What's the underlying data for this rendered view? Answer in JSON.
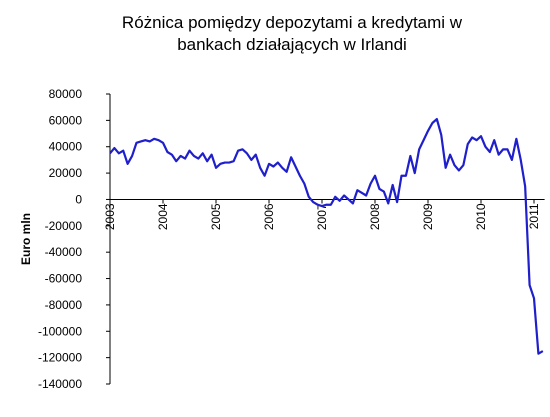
{
  "chart_data": {
    "type": "line",
    "title": [
      "Różnica pomiędzy depozytami a kredytami w",
      "bankach działających w Irlandi"
    ],
    "y_label": "Euro mln",
    "x": [
      2003,
      2003.083,
      2003.167,
      2003.25,
      2003.333,
      2003.417,
      2003.5,
      2003.583,
      2003.667,
      2003.75,
      2003.833,
      2003.917,
      2004,
      2004.083,
      2004.167,
      2004.25,
      2004.333,
      2004.417,
      2004.5,
      2004.583,
      2004.667,
      2004.75,
      2004.833,
      2004.917,
      2005,
      2005.083,
      2005.167,
      2005.25,
      2005.333,
      2005.417,
      2005.5,
      2005.583,
      2005.667,
      2005.75,
      2005.833,
      2005.917,
      2006,
      2006.083,
      2006.167,
      2006.25,
      2006.333,
      2006.417,
      2006.5,
      2006.583,
      2006.667,
      2006.75,
      2006.833,
      2006.917,
      2007,
      2007.083,
      2007.167,
      2007.25,
      2007.333,
      2007.417,
      2007.5,
      2007.583,
      2007.667,
      2007.75,
      2007.833,
      2007.917,
      2008,
      2008.083,
      2008.167,
      2008.25,
      2008.333,
      2008.417,
      2008.5,
      2008.583,
      2008.667,
      2008.75,
      2008.833,
      2008.917,
      2009,
      2009.083,
      2009.167,
      2009.25,
      2009.333,
      2009.417,
      2009.5,
      2009.583,
      2009.667,
      2009.75,
      2009.833,
      2009.917,
      2010,
      2010.083,
      2010.167,
      2010.25,
      2010.333,
      2010.417,
      2010.5,
      2010.583,
      2010.667,
      2010.75,
      2010.833,
      2010.917,
      2011,
      2011.083,
      2011.167
    ],
    "series": [
      {
        "color": "#1f1fcc",
        "values": [
          35000,
          39000,
          35000,
          37000,
          27000,
          33000,
          43000,
          44000,
          45000,
          44000,
          46000,
          45000,
          43000,
          36000,
          34000,
          29000,
          33000,
          31000,
          37000,
          33000,
          31000,
          35000,
          29000,
          34000,
          24000,
          27000,
          28000,
          28000,
          29000,
          37000,
          38000,
          35000,
          30000,
          34000,
          24000,
          18000,
          27000,
          25000,
          28000,
          24000,
          21000,
          32000,
          25000,
          18000,
          12000,
          2000,
          -2000,
          -4000,
          -5000,
          -4000,
          -4000,
          2000,
          -1000,
          3000,
          0,
          -3000,
          7000,
          5000,
          3000,
          12000,
          18000,
          8000,
          6000,
          -3000,
          11000,
          -2000,
          18000,
          18000,
          33000,
          20000,
          38000,
          45000,
          52000,
          58000,
          61000,
          49000,
          24000,
          34000,
          26000,
          22000,
          26000,
          42000,
          47000,
          45000,
          48000,
          40000,
          36000,
          45000,
          34000,
          38000,
          38000,
          30000,
          46000,
          30000,
          10000,
          -65000,
          -75000,
          -117000,
          -115000
        ]
      }
    ],
    "xlim": [
      2003,
      2011.2
    ],
    "xticks": [
      2003,
      2004,
      2005,
      2006,
      2007,
      2008,
      2009,
      2010,
      2011
    ],
    "ylim": [
      -140000,
      80000
    ],
    "yticks": [
      -140000,
      -120000,
      -100000,
      -80000,
      -60000,
      -40000,
      -20000,
      0,
      20000,
      40000,
      60000,
      80000
    ]
  }
}
